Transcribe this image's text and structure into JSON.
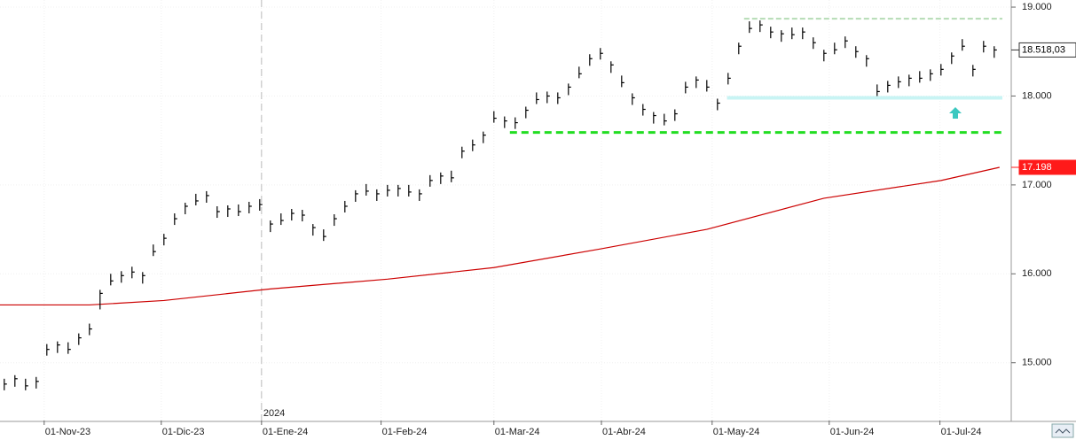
{
  "chart_data": {
    "type": "ohlc",
    "xlim": [
      -0.4,
      94.6
    ],
    "ylim": [
      14350,
      19080
    ],
    "xticks": [
      {
        "value": 3.75,
        "label": "01-Nov-23"
      },
      {
        "value": 14.75,
        "label": "01-Dic-23"
      },
      {
        "value": 24.17,
        "label": "01-Ene-24"
      },
      {
        "value": 35.4,
        "label": "01-Feb-24"
      },
      {
        "value": 46,
        "label": "01-Mar-24"
      },
      {
        "value": 56.1,
        "label": "01-Abr-24"
      },
      {
        "value": 66.5,
        "label": "01-May-24"
      },
      {
        "value": 77.5,
        "label": "01-Jun-24"
      },
      {
        "value": 87.9,
        "label": "01-Jul-24"
      }
    ],
    "yticks": [
      {
        "value": 15000,
        "label": "15.000"
      },
      {
        "value": 16000,
        "label": "16.000"
      },
      {
        "value": 17000,
        "label": "17.000"
      },
      {
        "value": 18000,
        "label": "18.000"
      },
      {
        "value": 19000,
        "label": "19.000"
      }
    ],
    "year_marker": {
      "value": 24.17,
      "label": "2024"
    },
    "grid": true,
    "color": "#000000",
    "high": [
      14820,
      14860,
      14820,
      14840,
      15210,
      15240,
      15230,
      15330,
      15440,
      15820,
      16000,
      16030,
      16080,
      16020,
      16330,
      16450,
      16680,
      16800,
      16900,
      16930,
      16760,
      16770,
      16780,
      16810,
      16840,
      16600,
      16680,
      16730,
      16720,
      16560,
      16500,
      16670,
      16820,
      16940,
      17010,
      16950,
      17000,
      17000,
      17000,
      16950,
      17110,
      17140,
      17160,
      17430,
      17510,
      17600,
      17830,
      17770,
      17760,
      17880,
      18040,
      18050,
      18040,
      18140,
      18330,
      18470,
      18540,
      18390,
      18230,
      18030,
      17910,
      17820,
      17800,
      17850,
      18160,
      18220,
      18180,
      17970,
      18260,
      18600,
      18840,
      18850,
      18780,
      18740,
      18770,
      18770,
      18660,
      18520,
      18600,
      18670,
      18560,
      18460,
      18130,
      18170,
      18220,
      18240,
      18280,
      18300,
      18360,
      18490,
      18640,
      18350,
      18620,
      18560
    ],
    "low": [
      14690,
      14730,
      14690,
      14710,
      15080,
      15110,
      15100,
      15200,
      15310,
      15600,
      15870,
      15900,
      15950,
      15890,
      16200,
      16320,
      16550,
      16670,
      16770,
      16800,
      16630,
      16640,
      16650,
      16680,
      16710,
      16470,
      16550,
      16600,
      16590,
      16430,
      16370,
      16540,
      16690,
      16810,
      16880,
      16820,
      16870,
      16870,
      16870,
      16820,
      16980,
      17010,
      17030,
      17300,
      17380,
      17470,
      17700,
      17640,
      17630,
      17750,
      17910,
      17920,
      17910,
      18010,
      18200,
      18340,
      18410,
      18260,
      18100,
      17900,
      17780,
      17690,
      17670,
      17720,
      18030,
      18090,
      18050,
      17840,
      18130,
      18470,
      18710,
      18720,
      18650,
      18610,
      18640,
      18640,
      18530,
      18390,
      18470,
      18540,
      18430,
      18330,
      18000,
      18040,
      18090,
      18110,
      18150,
      18170,
      18230,
      18360,
      18510,
      18220,
      18490,
      18430
    ],
    "close": [
      14760,
      14820,
      14740,
      14790,
      15150,
      15200,
      15150,
      15280,
      15380,
      15780,
      15920,
      15980,
      16020,
      15980,
      16250,
      16400,
      16620,
      16760,
      16820,
      16880,
      16700,
      16730,
      16700,
      16760,
      16780,
      16560,
      16600,
      16680,
      16660,
      16520,
      16420,
      16620,
      16760,
      16900,
      16930,
      16900,
      16940,
      16960,
      16920,
      16900,
      17050,
      17100,
      17080,
      17380,
      17450,
      17560,
      17750,
      17720,
      17700,
      17840,
      17960,
      18000,
      17980,
      18100,
      18250,
      18420,
      18480,
      18350,
      18150,
      17980,
      17850,
      17780,
      17720,
      17800,
      18100,
      18180,
      18100,
      17920,
      18200,
      18560,
      18760,
      18800,
      18720,
      18700,
      18690,
      18720,
      18600,
      18480,
      18520,
      18620,
      18500,
      18420,
      18050,
      18120,
      18160,
      18200,
      18200,
      18250,
      18300,
      18450,
      18560,
      18300,
      18560,
      18518.03
    ],
    "last_close": {
      "value": 18518.03,
      "label": "18.518,03"
    },
    "moving_average": {
      "color": "#cc0000",
      "x": [
        -0.4,
        8,
        15,
        25,
        36,
        46,
        56,
        66,
        77,
        88,
        93.5
      ],
      "values": [
        15650,
        15650,
        15700,
        15830,
        15940,
        16070,
        16280,
        16500,
        16850,
        17050,
        17198
      ],
      "last": {
        "value": 17198,
        "label": "17.198"
      }
    },
    "levels": [
      {
        "value": 18870,
        "from": 69.5,
        "color": "#b5dcb5",
        "dash": "6 3",
        "width": 2
      },
      {
        "value": 17980,
        "from": 67.9,
        "color": "#c8f4f4",
        "dash": "",
        "width": 4
      },
      {
        "value": 17590,
        "from": 47.5,
        "color": "#22dd22",
        "dash": "8 5",
        "width": 3
      }
    ]
  }
}
